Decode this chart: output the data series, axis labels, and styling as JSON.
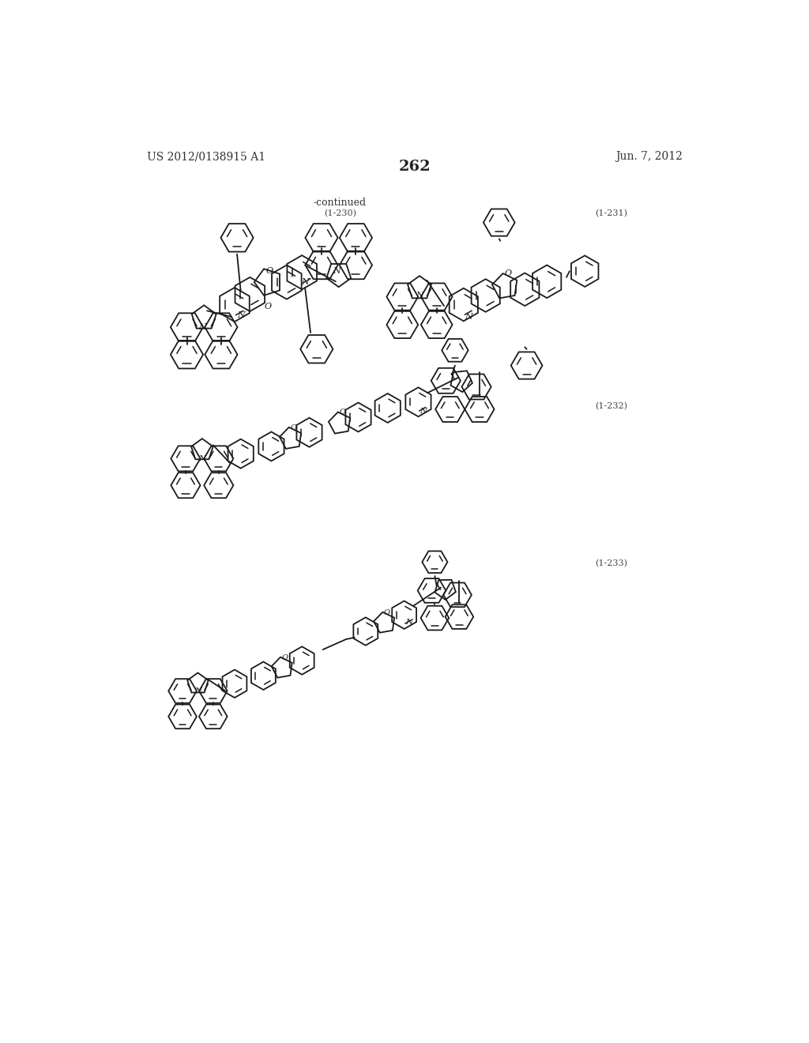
{
  "page_number": "262",
  "patent_number": "US 2012/0138915 A1",
  "patent_date": "Jun. 7, 2012",
  "continued_label": "-continued",
  "label_230": "(1-230)",
  "label_231": "(1-231)",
  "label_232": "(1-232)",
  "label_233": "(1-233)",
  "background_color": "#ffffff",
  "line_color": "#1a1a1a",
  "text_color": "#1a1a1a",
  "header_color": "#333333"
}
